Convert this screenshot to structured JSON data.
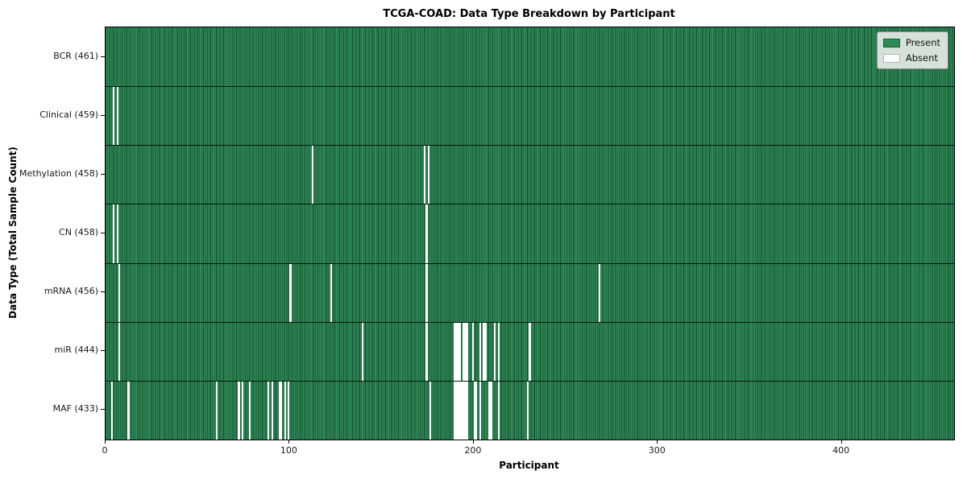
{
  "chart_data": {
    "type": "heatmap",
    "title": "TCGA-COAD: Data Type Breakdown by Participant",
    "xlabel": "Participant",
    "ylabel": "Data Type (Total Sample Count)",
    "n_participants": 461,
    "xlim": [
      0,
      461
    ],
    "x_ticks": [
      0,
      100,
      200,
      300,
      400
    ],
    "grid": false,
    "legend_position": "upper right",
    "legend": {
      "present_label": "Present",
      "absent_label": "Absent"
    },
    "colors": {
      "present": "#2e8b57",
      "present_edge": "#16482e",
      "absent": "#ffffff",
      "row_divider": "#05190f",
      "legend_background": "#e5eae5"
    },
    "rows": [
      {
        "label": "BCR (461)",
        "data_type": "BCR",
        "count": 461,
        "absent_participants": []
      },
      {
        "label": "Clinical (459)",
        "data_type": "Clinical",
        "count": 459,
        "absent_participants": [
          4,
          6
        ]
      },
      {
        "label": "Methylation (458)",
        "data_type": "Methylation",
        "count": 458,
        "absent_participants": [
          112,
          173,
          175
        ]
      },
      {
        "label": "CN (458)",
        "data_type": "CN",
        "count": 458,
        "absent_participants": [
          4,
          6,
          174
        ]
      },
      {
        "label": "mRNA (456)",
        "data_type": "mRNA",
        "count": 456,
        "absent_participants": [
          7,
          100,
          122,
          174,
          268
        ]
      },
      {
        "label": "miR (444)",
        "data_type": "miR",
        "count": 444,
        "absent_participants": [
          7,
          139,
          174,
          189,
          190,
          191,
          192,
          194,
          195,
          196,
          199,
          203,
          205,
          206,
          211,
          213,
          230
        ]
      },
      {
        "label": "MAF (433)",
        "data_type": "MAF",
        "count": 433,
        "absent_participants": [
          3,
          12,
          60,
          72,
          74,
          78,
          88,
          90,
          94,
          95,
          97,
          99,
          176,
          189,
          190,
          191,
          192,
          193,
          194,
          195,
          196,
          200,
          201,
          203,
          208,
          209,
          213,
          229
        ]
      }
    ]
  }
}
